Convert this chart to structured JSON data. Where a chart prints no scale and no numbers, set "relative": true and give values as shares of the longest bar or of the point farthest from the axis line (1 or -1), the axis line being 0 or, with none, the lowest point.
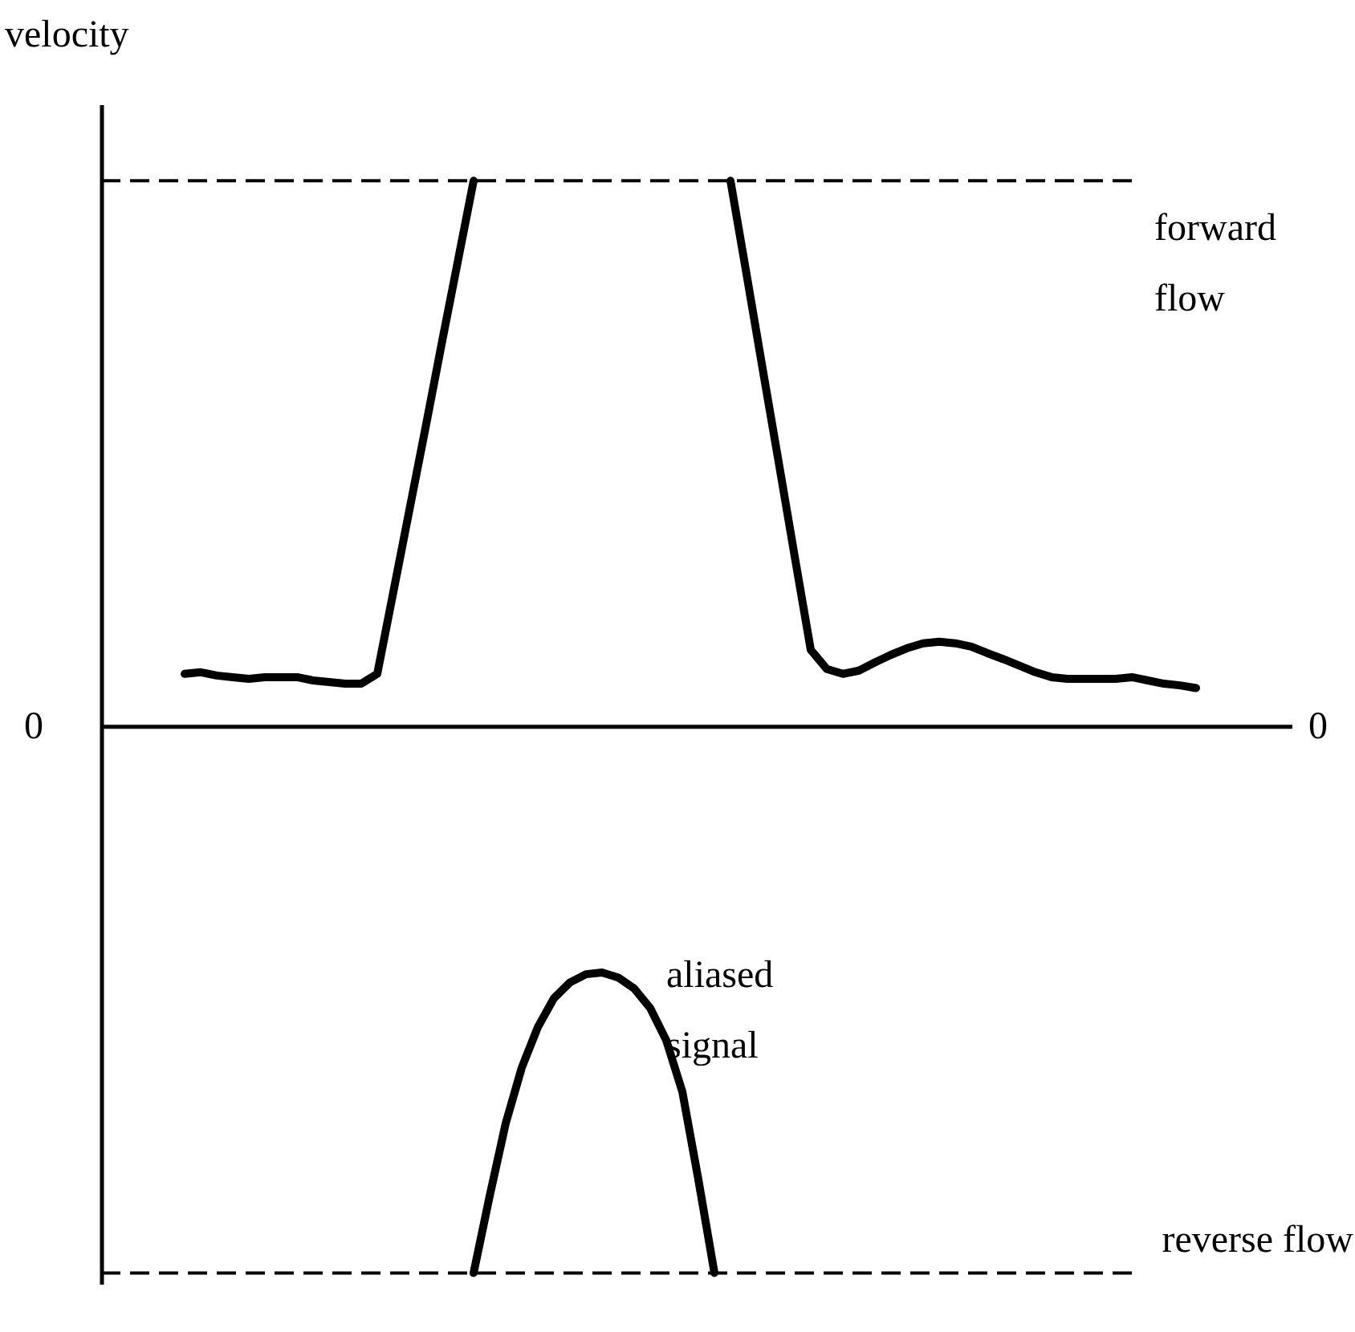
{
  "chart_data": {
    "type": "line",
    "relative": true,
    "ylabel": "velocity",
    "categories": [
      null,
      null,
      null,
      null,
      null,
      null,
      null,
      null,
      null,
      null,
      null,
      null,
      null,
      null,
      null,
      null,
      null,
      null,
      null,
      null,
      null,
      null,
      null,
      null,
      null,
      null,
      null,
      null,
      null,
      null,
      null,
      null,
      null,
      null,
      null,
      null,
      null,
      null,
      null,
      null,
      null,
      null,
      null,
      null,
      null,
      null,
      null,
      null,
      null,
      null,
      null,
      null,
      null,
      null,
      null,
      null,
      null,
      null,
      null,
      null,
      null,
      null,
      null,
      null
    ],
    "series": [
      {
        "color": "#000000",
        "values": [
          0.097,
          0.1,
          0.094,
          0.091,
          0.088,
          0.091,
          0.091,
          0.091,
          0.085,
          0.082,
          0.079,
          0.079,
          0.097,
          0.247,
          0.397,
          0.547,
          0.7,
          0.85,
          1,
          null,
          null,
          null,
          null,
          null,
          null,
          null,
          null,
          null,
          null,
          null,
          null,
          null,
          null,
          null,
          1,
          0.829,
          0.656,
          0.485,
          0.312,
          0.141,
          0.106,
          0.097,
          0.103,
          0.118,
          0.132,
          0.144,
          0.153,
          0.156,
          0.153,
          0.147,
          0.135,
          0.124,
          0.112,
          0.1,
          0.091,
          0.088,
          0.088,
          0.088,
          0.088,
          0.091,
          0.085,
          0.079,
          0.076,
          0.071
        ]
      },
      {
        "color": "#000000",
        "values": [
          null,
          null,
          null,
          null,
          null,
          null,
          null,
          null,
          null,
          null,
          null,
          null,
          null,
          null,
          null,
          null,
          null,
          null,
          -1,
          -0.859,
          -0.726,
          -0.624,
          -0.55,
          -0.497,
          -0.468,
          -0.453,
          -0.45,
          -0.459,
          -0.479,
          -0.515,
          -0.574,
          -0.668,
          -0.829,
          -1,
          null,
          null,
          null,
          null,
          null,
          null,
          null,
          null,
          null,
          null,
          null,
          null,
          null,
          null,
          null,
          null,
          null,
          null,
          null,
          null,
          null,
          null,
          null,
          null,
          null,
          null,
          null,
          null,
          null,
          null
        ]
      }
    ],
    "ref_lines": [
      {
        "axis": "y",
        "value": 1,
        "label": "forward flow",
        "color": "#000000",
        "line_style": "dashed"
      },
      {
        "axis": "y",
        "value": -1,
        "label": "reverse flow",
        "color": "#000000",
        "line_style": "dashed"
      }
    ],
    "annotations": [
      "aliased signal",
      "0",
      "0"
    ],
    "marker": "none",
    "line_style": "solid"
  }
}
